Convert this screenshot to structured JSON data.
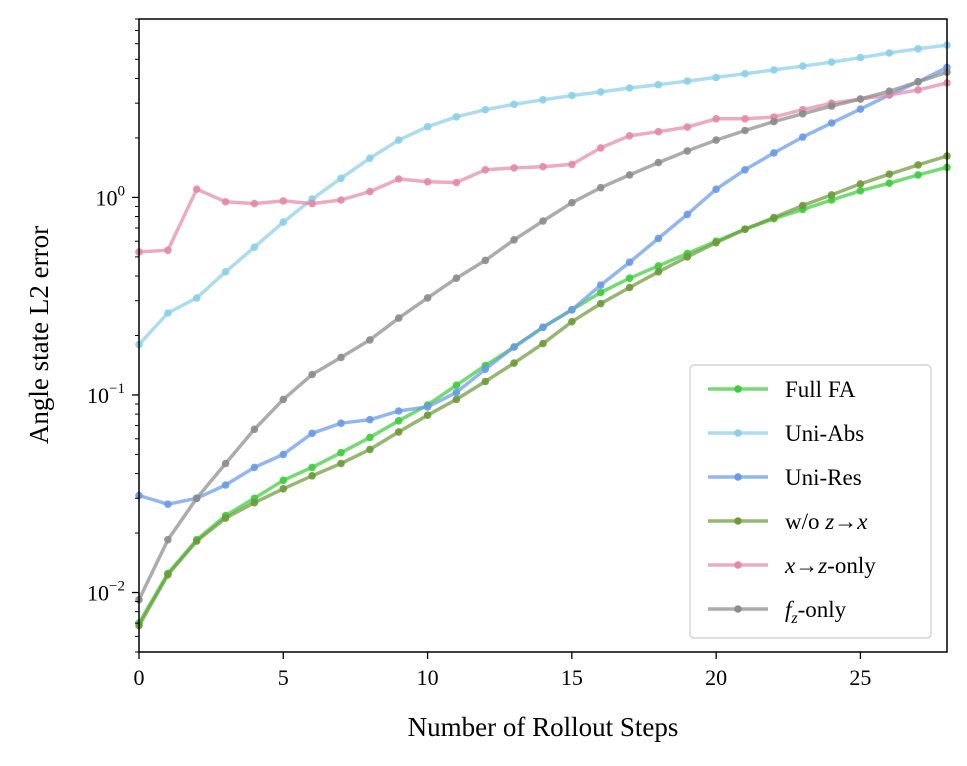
{
  "chart_data": {
    "type": "line",
    "xlabel": "Number of Rollout Steps",
    "ylabel": "Angle state L2 error",
    "xlim": [
      0,
      28
    ],
    "ylim": [
      0.005,
      8
    ],
    "yscale": "log",
    "grid": false,
    "legend_position": "lower-right",
    "x_ticks": [
      0,
      5,
      10,
      15,
      20,
      25
    ],
    "y_ticks": [
      {
        "value": 0.01,
        "base": "10",
        "exp": "−2"
      },
      {
        "value": 0.1,
        "base": "10",
        "exp": "−1"
      },
      {
        "value": 1,
        "base": "10",
        "exp": "0"
      }
    ],
    "x": [
      0,
      1,
      2,
      3,
      4,
      5,
      6,
      7,
      8,
      9,
      10,
      11,
      12,
      13,
      14,
      15,
      16,
      17,
      18,
      19,
      20,
      21,
      22,
      23,
      24,
      25,
      26,
      27,
      28
    ],
    "series": [
      {
        "name": "Full FA",
        "color": "#3fcc3f",
        "values": [
          0.007,
          0.0125,
          0.0185,
          0.0245,
          0.03,
          0.037,
          0.043,
          0.051,
          0.061,
          0.074,
          0.089,
          0.112,
          0.141,
          0.175,
          0.22,
          0.27,
          0.33,
          0.39,
          0.45,
          0.52,
          0.6,
          0.69,
          0.78,
          0.87,
          0.97,
          1.08,
          1.18,
          1.3,
          1.42
        ]
      },
      {
        "name": "Uni-Abs",
        "color": "#8ccfe8",
        "values": [
          0.18,
          0.26,
          0.31,
          0.42,
          0.56,
          0.75,
          0.98,
          1.25,
          1.58,
          1.95,
          2.28,
          2.56,
          2.78,
          2.96,
          3.12,
          3.28,
          3.42,
          3.58,
          3.72,
          3.88,
          4.05,
          4.23,
          4.42,
          4.62,
          4.84,
          5.1,
          5.38,
          5.65,
          5.9
        ]
      },
      {
        "name": "Uni-Res",
        "color": "#6a9ae6",
        "values": [
          0.031,
          0.028,
          0.03,
          0.035,
          0.043,
          0.05,
          0.064,
          0.072,
          0.075,
          0.083,
          0.087,
          0.103,
          0.135,
          0.175,
          0.22,
          0.27,
          0.36,
          0.47,
          0.62,
          0.82,
          1.1,
          1.38,
          1.68,
          2.02,
          2.38,
          2.8,
          3.3,
          3.85,
          4.55
        ]
      },
      {
        "name": "w/o z→x",
        "color": "#6e9a3a",
        "values": [
          0.0068,
          0.0123,
          0.0182,
          0.0238,
          0.0285,
          0.0335,
          0.039,
          0.045,
          0.053,
          0.065,
          0.079,
          0.095,
          0.117,
          0.145,
          0.182,
          0.235,
          0.29,
          0.35,
          0.42,
          0.5,
          0.59,
          0.69,
          0.79,
          0.91,
          1.03,
          1.17,
          1.31,
          1.46,
          1.62
        ]
      },
      {
        "name": "x→z-only",
        "color": "#e38aa8",
        "values": [
          0.53,
          0.54,
          1.1,
          0.95,
          0.93,
          0.96,
          0.93,
          0.97,
          1.07,
          1.24,
          1.2,
          1.19,
          1.38,
          1.41,
          1.43,
          1.47,
          1.78,
          2.05,
          2.15,
          2.27,
          2.5,
          2.5,
          2.55,
          2.78,
          3.0,
          3.15,
          3.3,
          3.5,
          3.8
        ]
      },
      {
        "name": "f_z-only",
        "color": "#8c8c8c",
        "values": [
          0.0092,
          0.0185,
          0.03,
          0.045,
          0.067,
          0.095,
          0.127,
          0.155,
          0.19,
          0.245,
          0.31,
          0.39,
          0.48,
          0.61,
          0.76,
          0.94,
          1.12,
          1.3,
          1.5,
          1.72,
          1.95,
          2.18,
          2.42,
          2.65,
          2.9,
          3.15,
          3.45,
          3.85,
          4.3
        ]
      }
    ]
  }
}
